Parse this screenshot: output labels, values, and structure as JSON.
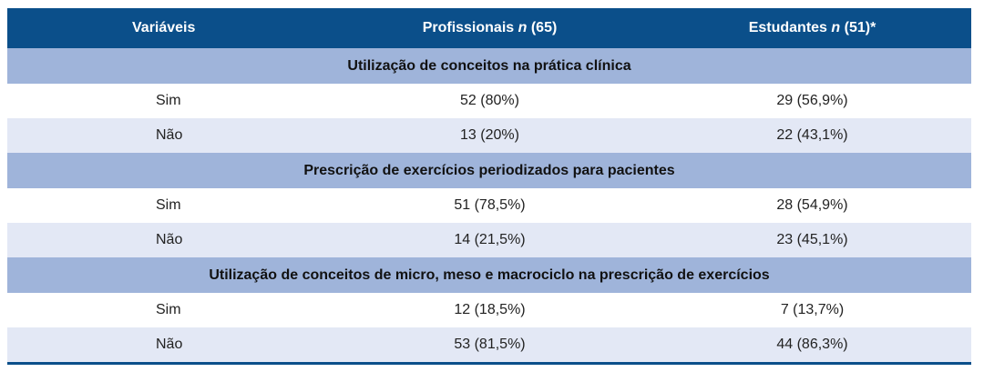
{
  "header": {
    "col1": "Variáveis",
    "col2_prefix": "Profissionais ",
    "col2_n": "n",
    "col2_suffix": " (65)",
    "col3_prefix": "Estudantes ",
    "col3_n": "n",
    "col3_suffix": " (51)*"
  },
  "sections": [
    {
      "title": "Utilização de conceitos na prática clínica",
      "rows": [
        {
          "label": "Sim",
          "prof": "52 (80%)",
          "est": "29 (56,9%)"
        },
        {
          "label": "Não",
          "prof": "13 (20%)",
          "est": "22 (43,1%)"
        }
      ]
    },
    {
      "title": "Prescrição de exercícios periodizados para pacientes",
      "rows": [
        {
          "label": "Sim",
          "prof": "51 (78,5%)",
          "est": "28 (54,9%)"
        },
        {
          "label": "Não",
          "prof": "14 (21,5%)",
          "est": "23 (45,1%)"
        }
      ]
    },
    {
      "title": "Utilização de conceitos de micro, meso e macrociclo na prescrição de exercícios",
      "rows": [
        {
          "label": "Sim",
          "prof": "12 (18,5%)",
          "est": "7 (13,7%)"
        },
        {
          "label": "Não",
          "prof": "53 (81,5%)",
          "est": "44 (86,3%)"
        }
      ]
    }
  ],
  "colors": {
    "header_bg": "#0b4f8a",
    "section_bg": "#9fb4da",
    "shaded_row_bg": "#e3e8f5"
  }
}
